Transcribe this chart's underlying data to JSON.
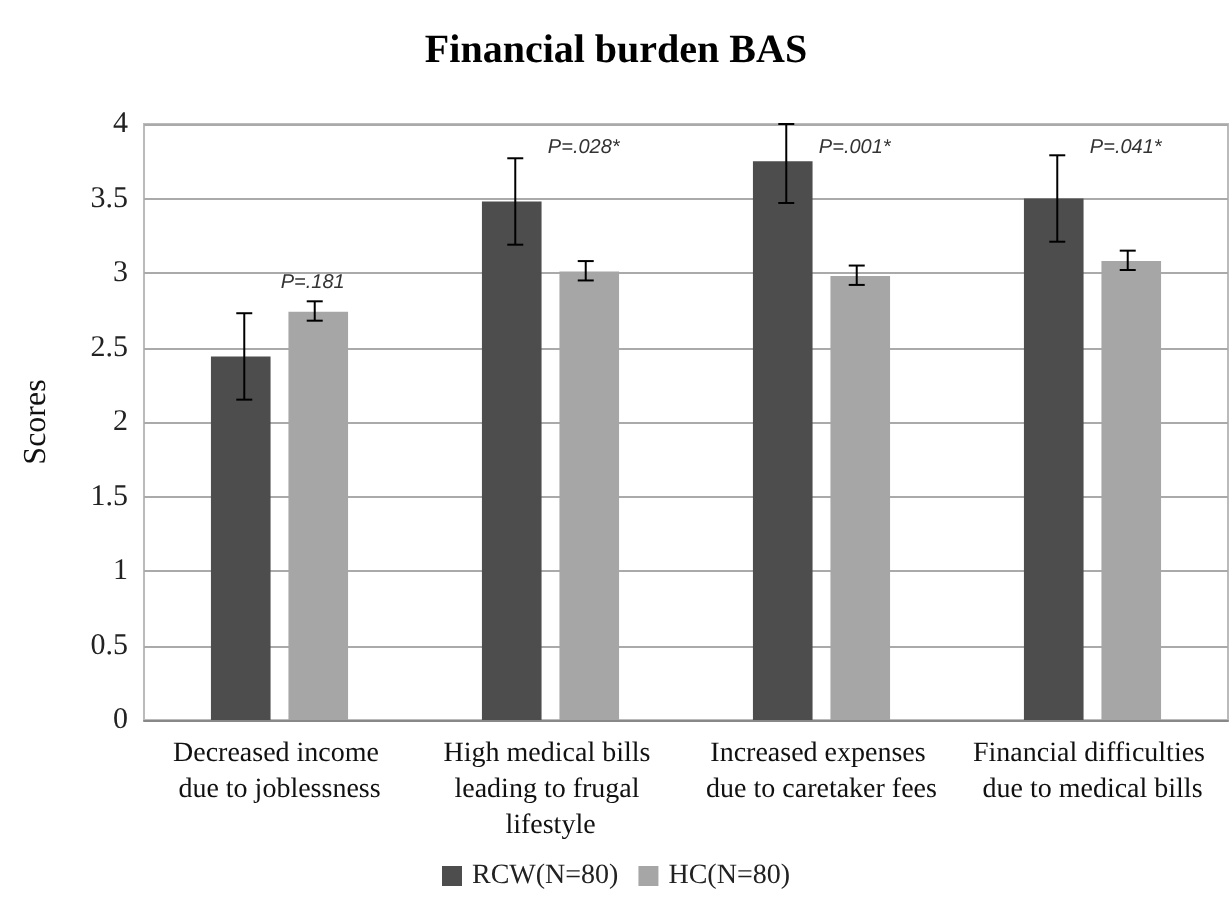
{
  "chart_data": {
    "type": "bar",
    "title": "Financial burden BAS",
    "ylabel": "Scores",
    "categories": [
      "Decreased income due to joblessness",
      "High medical bills leading to frugal lifestyle",
      "Increased expenses due to caretaker fees",
      "Financial difficulties due to medical bills"
    ],
    "series": [
      {
        "name": "RCW(N=80)",
        "color": "#4d4d4d",
        "values": [
          2.44,
          3.48,
          3.75,
          3.5
        ],
        "errors": [
          [
            2.15,
            2.73
          ],
          [
            3.19,
            3.77
          ],
          [
            3.47,
            4.0
          ],
          [
            3.21,
            3.79
          ]
        ]
      },
      {
        "name": "HC(N=80)",
        "color": "#a6a6a6",
        "values": [
          2.74,
          3.01,
          2.98,
          3.08
        ],
        "errors": [
          [
            2.68,
            2.81
          ],
          [
            2.95,
            3.08
          ],
          [
            2.92,
            3.05
          ],
          [
            3.02,
            3.15
          ]
        ]
      }
    ],
    "ylim": [
      0,
      4
    ],
    "yticks": [
      0,
      0.5,
      1,
      1.5,
      2,
      2.5,
      3,
      3.5,
      4
    ],
    "grid": "y",
    "legend": "bottom",
    "annotations": [
      "P=.181",
      "P=.028*",
      "P=.001*",
      "P=.041*"
    ]
  }
}
